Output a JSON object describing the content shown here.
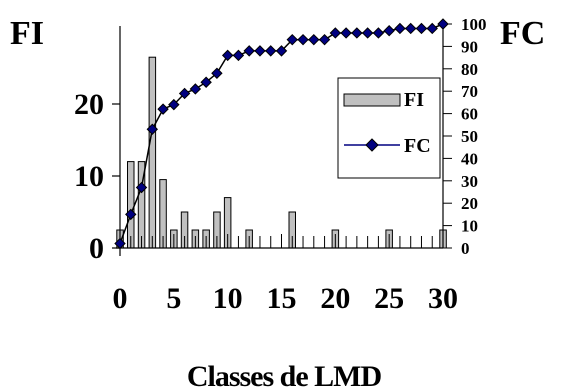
{
  "chart_data": {
    "type": "bar",
    "left_axis_label": "FI",
    "right_axis_label": "FC",
    "xlabel": "Classes de LMD",
    "xlim": [
      0,
      30
    ],
    "x_ticks": [
      "0",
      "5",
      "10",
      "15",
      "20",
      "25",
      "30"
    ],
    "ylim_left": [
      0,
      30
    ],
    "y_ticks_left": [
      "0",
      "10",
      "20"
    ],
    "ylim_right": [
      0,
      100
    ],
    "y_ticks_right": [
      "0",
      "10",
      "20",
      "30",
      "40",
      "50",
      "60",
      "70",
      "80",
      "90",
      "100"
    ],
    "legend_position": "right",
    "series": [
      {
        "name": "FI",
        "kind": "bar",
        "color": "#c0c0c0",
        "x": [
          0,
          1,
          2,
          3,
          4,
          5,
          6,
          7,
          8,
          9,
          10,
          12,
          16,
          20,
          25,
          30
        ],
        "values": [
          2.5,
          12,
          12,
          26.5,
          9.5,
          2.5,
          5,
          2.5,
          2.5,
          5,
          7,
          2.5,
          5,
          2.5,
          2.5,
          2.5
        ]
      },
      {
        "name": "FC",
        "kind": "line",
        "color": "#000080",
        "x": [
          0,
          1,
          2,
          3,
          4,
          5,
          6,
          7,
          8,
          9,
          10,
          11,
          12,
          13,
          14,
          15,
          16,
          17,
          18,
          19,
          20,
          21,
          22,
          23,
          24,
          25,
          26,
          27,
          28,
          29,
          30
        ],
        "values": [
          2,
          15,
          27,
          53,
          62,
          64,
          69,
          71,
          74,
          78,
          86,
          86,
          88,
          88,
          88,
          88,
          93,
          93,
          93,
          93,
          96,
          96,
          96,
          96,
          96,
          97,
          98,
          98,
          98,
          98,
          100
        ]
      }
    ]
  }
}
